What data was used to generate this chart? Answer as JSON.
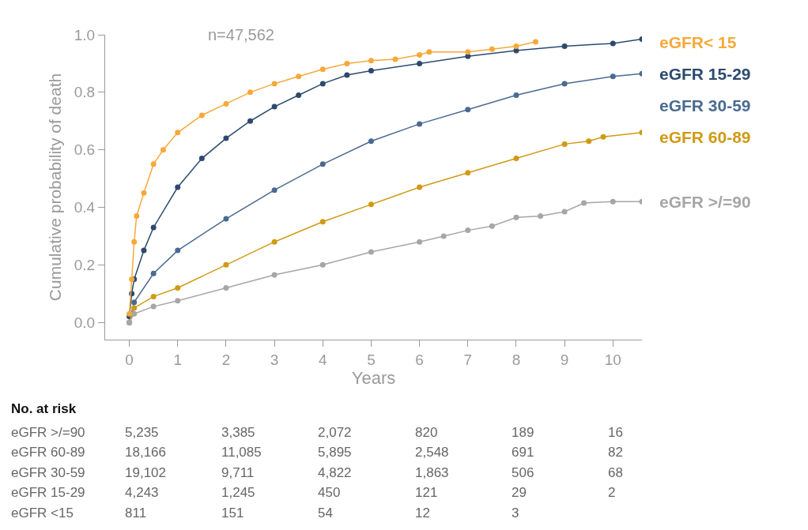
{
  "chart_data": {
    "type": "line",
    "xlabel": "Years",
    "ylabel": "Cumulative probability of death",
    "xlim": [
      -0.5,
      10.6
    ],
    "ylim": [
      -0.06,
      1.0
    ],
    "xticks": [
      0,
      1,
      2,
      3,
      4,
      5,
      6,
      7,
      8,
      9,
      10
    ],
    "yticks": [
      {
        "value": 0,
        "label": "0.0"
      },
      {
        "value": 0.2,
        "label": "0.2"
      },
      {
        "value": 0.4,
        "label": "0.4"
      },
      {
        "value": 0.6,
        "label": "0.6"
      },
      {
        "value": 0.8,
        "label": "0.8"
      },
      {
        "value": 1.0,
        "label": "1.0"
      }
    ],
    "grid": false,
    "legend": false,
    "marker": "circle",
    "line_style": "solid",
    "series": [
      {
        "name": "eGFR< 15",
        "color": "#f5a93a",
        "x": [
          0,
          0.05,
          0.1,
          0.15,
          0.3,
          0.5,
          0.7,
          1,
          1.5,
          2,
          2.5,
          3,
          3.5,
          4,
          4.5,
          5,
          5.5,
          6,
          6.2,
          7,
          7.5,
          8,
          8.4
        ],
        "values": [
          0.03,
          0.15,
          0.28,
          0.37,
          0.45,
          0.55,
          0.6,
          0.66,
          0.72,
          0.76,
          0.8,
          0.83,
          0.855,
          0.88,
          0.9,
          0.91,
          0.915,
          0.93,
          0.94,
          0.94,
          0.95,
          0.96,
          0.975
        ]
      },
      {
        "name": "eGFR 15-29",
        "color": "#2c4a6e",
        "x": [
          0,
          0.05,
          0.1,
          0.3,
          0.5,
          1,
          1.5,
          2,
          2.5,
          3,
          3.5,
          4,
          4.5,
          5,
          6,
          7,
          8,
          9,
          10,
          10.6
        ],
        "values": [
          0.02,
          0.1,
          0.15,
          0.25,
          0.33,
          0.47,
          0.57,
          0.64,
          0.7,
          0.75,
          0.79,
          0.83,
          0.86,
          0.875,
          0.9,
          0.925,
          0.945,
          0.96,
          0.97,
          0.985
        ]
      },
      {
        "name": "eGFR 30-59",
        "color": "#4a6a90",
        "x": [
          0,
          0.1,
          0.5,
          1,
          2,
          3,
          4,
          5,
          6,
          7,
          8,
          9,
          10,
          10.6
        ],
        "values": [
          0,
          0.07,
          0.17,
          0.25,
          0.36,
          0.46,
          0.55,
          0.63,
          0.69,
          0.74,
          0.79,
          0.83,
          0.855,
          0.865
        ]
      },
      {
        "name": "eGFR 60-89",
        "color": "#d09a14",
        "x": [
          0,
          0.1,
          0.5,
          1,
          2,
          3,
          4,
          5,
          6,
          7,
          8,
          9,
          9.5,
          9.8,
          10.6
        ],
        "values": [
          0,
          0.05,
          0.09,
          0.12,
          0.2,
          0.28,
          0.35,
          0.41,
          0.47,
          0.52,
          0.57,
          0.62,
          0.63,
          0.645,
          0.66
        ]
      },
      {
        "name": "eGFR >/=90",
        "color": "#a6a6a6",
        "x": [
          0,
          0.1,
          0.5,
          1,
          2,
          3,
          4,
          5,
          6,
          6.5,
          7,
          7.5,
          8,
          8.5,
          9,
          9.4,
          10,
          10.6
        ],
        "values": [
          0,
          0.03,
          0.055,
          0.075,
          0.12,
          0.165,
          0.2,
          0.245,
          0.28,
          0.3,
          0.32,
          0.335,
          0.365,
          0.37,
          0.385,
          0.415,
          0.42,
          0.42
        ]
      }
    ],
    "annotations": [
      "n=47,562",
      "No. at risk",
      "eGFR >/=90\t5,235\t3,385\t2,072\t820\t189\t16",
      "eGFR 60-89\t18,166\t11,085\t5,895\t2,548\t691\t82",
      "eGFR 30-59\t19,102\t9,711\t4,822\t1,863\t506\t68",
      "eGFR 15-29\t4,243\t1,245\t450\t121\t29\t2",
      "eGFR <15\t811\t151\t54\t12\t3"
    ]
  }
}
